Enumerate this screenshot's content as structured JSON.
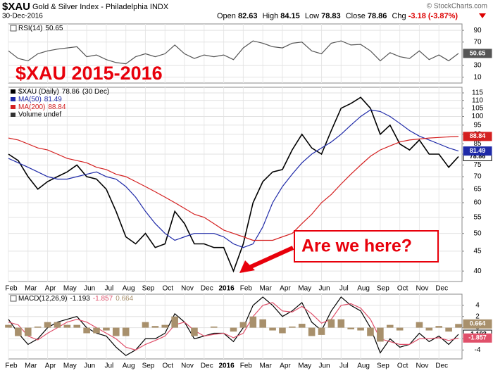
{
  "header": {
    "symbol": "$XAU",
    "name": "Gold & Silver Index - Philadelphia INDX",
    "date": "30-Dec-2016",
    "quote": [
      {
        "label": "Open",
        "value": "82.63"
      },
      {
        "label": "High",
        "value": "84.15"
      },
      {
        "label": "Low",
        "value": "78.83"
      },
      {
        "label": "Close",
        "value": "78.86"
      },
      {
        "label": "Chg",
        "value": "-3.18 (-3.87%)"
      }
    ],
    "credit": "© StockCharts.com"
  },
  "annotations": [
    "$XAU  2015-2016",
    "Are we here?"
  ],
  "chart_data": [
    {
      "type": "line",
      "title": "RSI(14)",
      "ylim": [
        0,
        101
      ],
      "yticks": [
        10,
        30,
        70,
        90
      ],
      "grid": true,
      "series": [
        {
          "name": "RSI(14)",
          "color": "#555555",
          "values": [
            55,
            42,
            38,
            50,
            55,
            58,
            60,
            62,
            45,
            48,
            40,
            35,
            33,
            45,
            50,
            45,
            50,
            65,
            50,
            42,
            48,
            45,
            48,
            40,
            60,
            72,
            68,
            62,
            60,
            68,
            70,
            55,
            50,
            68,
            72,
            65,
            66,
            55,
            38,
            52,
            45,
            42,
            55,
            40,
            48,
            38,
            50.65
          ]
        }
      ]
    },
    {
      "type": "line",
      "log_scale": true,
      "ylim": [
        37.6,
        118.9
      ],
      "yticks": [
        40,
        45,
        50,
        55,
        60,
        65,
        70,
        75,
        80,
        85,
        90,
        95,
        100,
        105,
        110,
        115
      ],
      "grid": true,
      "categories": [
        "Feb",
        null,
        "Mar",
        null,
        "Apr",
        null,
        "May",
        null,
        "Jun",
        null,
        "Jul",
        null,
        "Aug",
        null,
        "Sep",
        null,
        "Oct",
        null,
        "Nov",
        null,
        "Dec",
        null,
        "2016",
        null,
        "Feb",
        null,
        "Mar",
        null,
        "Apr",
        null,
        "May",
        null,
        "Jun",
        null,
        "Jul",
        null,
        "Aug",
        null,
        "Sep",
        null,
        "Oct",
        null,
        "Nov",
        null,
        "Dec",
        null,
        null
      ],
      "last_date": "(30 Dec)",
      "legend_extra": "Volume undef",
      "series": [
        {
          "name": "$XAU (Daily)",
          "color": "#000000",
          "values": [
            80,
            77,
            70,
            65,
            68,
            70,
            72,
            75,
            70,
            69,
            65,
            57,
            49,
            47,
            50,
            46,
            47,
            57,
            53,
            47,
            47,
            46,
            46,
            40,
            47,
            60,
            68,
            72,
            73,
            82,
            90,
            83,
            80,
            92,
            105,
            108,
            112,
            105,
            90,
            95,
            85,
            82,
            87,
            80,
            80,
            74,
            78.86
          ]
        },
        {
          "name": "MA(50)",
          "color": "#1f2aa8",
          "values": [
            78,
            76,
            74,
            72,
            70,
            69,
            69,
            70,
            71,
            72,
            70,
            69,
            66,
            62,
            57,
            53,
            50,
            48,
            49,
            50,
            50,
            50,
            49,
            47,
            46,
            47,
            52,
            60,
            66,
            71,
            76,
            80,
            83,
            86,
            90,
            95,
            100,
            104,
            103,
            100,
            96,
            92,
            89,
            87,
            85,
            83,
            81.49
          ]
        },
        {
          "name": "MA(200)",
          "color": "#d42020",
          "values": [
            88,
            87,
            85,
            83,
            82,
            80,
            78,
            77,
            76,
            74,
            73,
            71,
            70,
            68,
            66,
            64,
            62,
            60,
            58,
            56,
            55,
            53,
            51,
            50,
            49,
            48,
            48,
            48,
            49,
            50,
            53,
            56,
            60,
            63,
            67,
            71,
            75,
            79,
            82,
            84,
            86,
            87,
            87.5,
            88,
            88.3,
            88.6,
            88.84
          ]
        }
      ]
    },
    {
      "type": "line",
      "title": "MACD(12,26,9)",
      "ylim": [
        -5.6,
        6
      ],
      "yticks": [
        -4,
        -2,
        0,
        2,
        4
      ],
      "grid": true,
      "categories": [
        "Feb",
        null,
        "Mar",
        null,
        "Apr",
        null,
        "May",
        null,
        "Jun",
        null,
        "Jul",
        null,
        "Aug",
        null,
        "Sep",
        null,
        "Oct",
        null,
        "Nov",
        null,
        "Dec",
        null,
        "2016",
        null,
        "Feb",
        null,
        "Mar",
        null,
        "Apr",
        null,
        "May",
        null,
        "Jun",
        null,
        "Jul",
        null,
        "Aug",
        null,
        "Sep",
        null,
        "Oct",
        null,
        "Nov",
        null,
        "Dec",
        null,
        null
      ],
      "series": [
        {
          "name": "MACD",
          "color": "#000000",
          "values": [
            1.5,
            -1,
            -3,
            -2,
            0,
            1,
            1.5,
            2,
            0,
            -1,
            -1.5,
            -3.5,
            -5,
            -4,
            -2,
            -2,
            -1,
            2.5,
            1,
            -2,
            -1.5,
            -1,
            -1,
            -2.5,
            0,
            4,
            5.5,
            4,
            2,
            3,
            4.5,
            1,
            -0.5,
            3,
            5.5,
            4,
            3,
            0,
            -4.5,
            -2,
            -3.5,
            -3,
            -1,
            -2.5,
            -1.5,
            -3,
            -1.193
          ]
        },
        {
          "name": "Signal",
          "color": "#e0506a",
          "values": [
            1,
            0.5,
            -1.5,
            -2.2,
            -1,
            0,
            1,
            1.5,
            1,
            0,
            -1,
            -2,
            -3.5,
            -4,
            -3,
            -2.3,
            -1.5,
            0.5,
            1,
            -0.5,
            -1.5,
            -1.2,
            -1,
            -1.8,
            -1,
            2,
            4,
            4.5,
            3,
            2.8,
            3.8,
            2.5,
            0.8,
            1.5,
            4,
            4.3,
            3.5,
            1.5,
            -2,
            -2.5,
            -3,
            -3,
            -2,
            -2,
            -1.8,
            -2.3,
            -1.857
          ]
        },
        {
          "name": "Histogram",
          "color": "#a8906c",
          "mark": "bar",
          "values": [
            0.5,
            -1.5,
            -1.5,
            0.2,
            1,
            1,
            0.5,
            0.5,
            -1,
            -1,
            -0.5,
            -1.5,
            -1.5,
            0,
            1,
            0.3,
            0.5,
            2,
            0,
            -1.5,
            0,
            0.2,
            0,
            -0.7,
            1,
            2,
            1.5,
            -0.5,
            -1,
            0.2,
            0.7,
            -1.5,
            -1.3,
            1.5,
            1.5,
            -0.3,
            -0.5,
            -1.5,
            -2.5,
            0.5,
            -0.5,
            0,
            1,
            -0.5,
            0.3,
            -0.7,
            0.664
          ]
        }
      ]
    }
  ]
}
